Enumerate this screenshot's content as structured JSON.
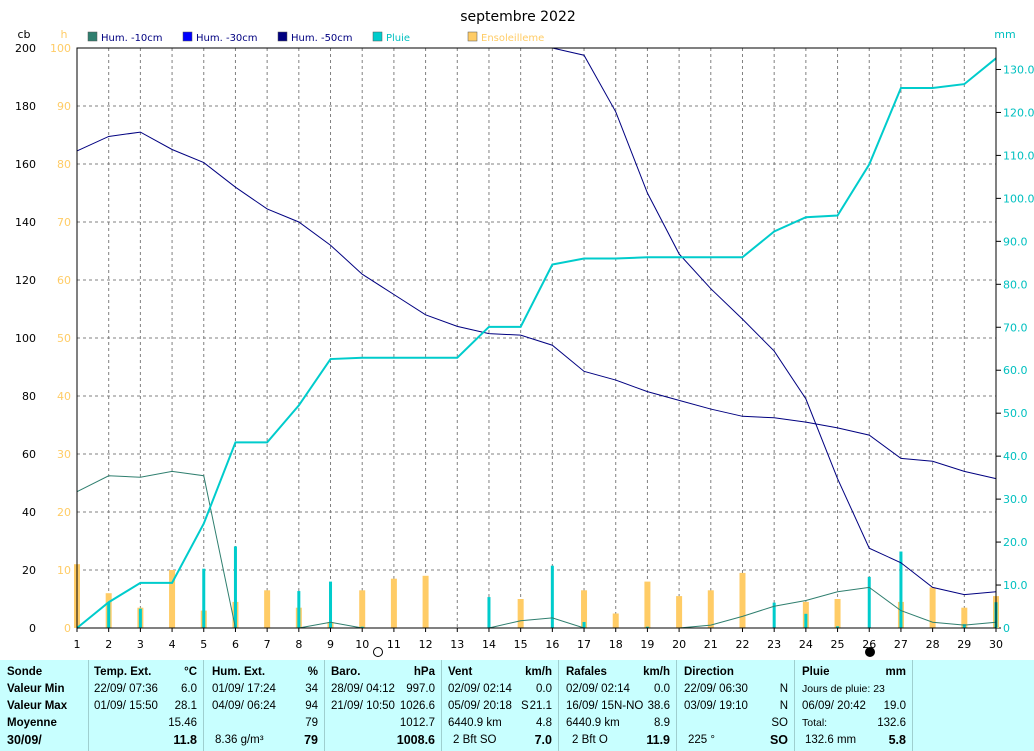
{
  "chart_data": {
    "type": "line",
    "title": "septembre 2022",
    "x": [
      1,
      2,
      3,
      4,
      5,
      6,
      7,
      8,
      9,
      10,
      11,
      12,
      13,
      14,
      15,
      16,
      17,
      18,
      19,
      20,
      21,
      22,
      23,
      24,
      25,
      26,
      27,
      28,
      29,
      30
    ],
    "x_ticks": [
      "1",
      "2",
      "3",
      "4",
      "5",
      "6",
      "7",
      "8",
      "9",
      "10",
      "11",
      "12",
      "13",
      "14",
      "15",
      "16",
      "17",
      "18",
      "19",
      "20",
      "21",
      "22",
      "23",
      "24",
      "25",
      "26",
      "27",
      "28",
      "29",
      "30"
    ],
    "axes": {
      "cb": {
        "unit": "cb",
        "range": [
          0,
          200
        ],
        "ticks": [
          "0",
          "20",
          "40",
          "60",
          "80",
          "100",
          "120",
          "140",
          "160",
          "180",
          "200"
        ],
        "color": "#000000"
      },
      "h": {
        "unit": "h",
        "range": [
          0,
          100
        ],
        "ticks": [
          "0",
          "10",
          "20",
          "30",
          "40",
          "50",
          "60",
          "70",
          "80",
          "90",
          "100"
        ],
        "color": "#ffcc66"
      },
      "mm": {
        "unit": "mm",
        "range": [
          0,
          135
        ],
        "ticks": [
          "0",
          "10.0",
          "20.0",
          "30.0",
          "40.0",
          "50.0",
          "60.0",
          "70.0",
          "80.0",
          "90.0",
          "100.0",
          "110.0",
          "120.0",
          "130.0"
        ],
        "color": "#00c0c0"
      }
    },
    "grid": true,
    "legend_position": "top",
    "legend": [
      {
        "name": "Hum. -10cm",
        "color": "#2f7f6f"
      },
      {
        "name": "Hum. -30cm",
        "color": "#0000ff"
      },
      {
        "name": "Hum. -50cm",
        "color": "#000080"
      },
      {
        "name": "Pluie",
        "color": "#00cccc"
      },
      {
        "name": "Ensoleilleme",
        "color": "#ffcc66"
      }
    ],
    "series": [
      {
        "name": "Hum. -10cm",
        "axis": "cb",
        "color": "#2f7f6f",
        "kind": "line",
        "values": [
          47,
          52.5,
          52,
          54,
          52.5,
          0,
          0,
          0,
          2,
          0,
          0,
          0,
          0,
          0,
          2.5,
          3.5,
          0,
          0,
          0,
          0,
          1,
          4,
          7.5,
          9.5,
          12.5,
          14,
          6,
          2,
          1,
          2
        ]
      },
      {
        "name": "Hum. -30cm",
        "axis": "cb",
        "color": "#0000ff",
        "kind": "line",
        "values": [
          200,
          200,
          200,
          200,
          200,
          200,
          200,
          200,
          200,
          200,
          200,
          200,
          200,
          200,
          200,
          200,
          200,
          200,
          200,
          200,
          200,
          200,
          200,
          200,
          200,
          200,
          200,
          200,
          200,
          200
        ]
      },
      {
        "name": "Hum. -50cm",
        "axis": "cb",
        "color": "#000080",
        "kind": "line",
        "values": [
          164.5,
          169.5,
          171,
          165,
          160.5,
          152,
          144.5,
          140,
          132,
          122,
          115,
          108,
          104,
          101.5,
          101,
          97.5,
          88.5,
          85.5,
          81.5,
          78.5,
          75.5,
          73,
          72.5,
          71,
          69,
          66.5,
          58.5,
          57.5,
          54,
          51.5
        ],
        "extra_start": 200,
        "extra_path": [
          [
            16,
            200
          ],
          [
            17,
            197.5
          ],
          [
            18,
            178
          ],
          [
            19,
            150
          ],
          [
            20,
            129
          ],
          [
            21,
            117
          ],
          [
            22,
            106.5
          ],
          [
            23,
            95.5
          ],
          [
            24,
            79
          ],
          [
            25,
            51.5
          ],
          [
            26,
            27.5
          ],
          [
            27,
            22.5
          ],
          [
            28,
            14
          ],
          [
            29,
            11.5
          ],
          [
            30,
            12.5
          ]
        ]
      },
      {
        "name": "Pluie",
        "axis": "mm",
        "color": "#00cccc",
        "kind": "line",
        "values": [
          0,
          6,
          10.5,
          10.5,
          24.3,
          43.2,
          43.2,
          51.8,
          62.6,
          62.9,
          62.9,
          62.9,
          62.9,
          70.1,
          70.1,
          84.6,
          86,
          86,
          86.3,
          86.3,
          86.3,
          86.3,
          92.3,
          95.6,
          96,
          107.9,
          125.7,
          125.7,
          126.6,
          132.6
        ]
      },
      {
        "name": "Pluie",
        "axis": "mm",
        "color": "#00cccc",
        "kind": "bar",
        "values": [
          0,
          6,
          4.5,
          0,
          13.8,
          19,
          0,
          8.6,
          10.8,
          0.3,
          0,
          0,
          0,
          7.2,
          0,
          14.5,
          1.4,
          0,
          0.3,
          0,
          0,
          0,
          5.9,
          3.3,
          0.4,
          11.9,
          17.8,
          0,
          0.9,
          6
        ]
      },
      {
        "name": "Ensoleilleme",
        "axis": "h",
        "color": "#ffcc66",
        "kind": "bar",
        "values": [
          11,
          6,
          3.5,
          10,
          3,
          4.5,
          6.5,
          3.5,
          1,
          6.5,
          8.5,
          9,
          0,
          0,
          5,
          0,
          6.5,
          2.5,
          8,
          5.5,
          6.5,
          9.5,
          0,
          4.5,
          5,
          0,
          4.5,
          7,
          3.5,
          5.5
        ]
      }
    ]
  },
  "summary": {
    "col1": {
      "header": "Sonde",
      "rows": [
        "Valeur Min",
        "Valeur Max",
        "Moyenne",
        "30/09/"
      ]
    },
    "temp": {
      "header": "Temp. Ext.",
      "unit": "°C",
      "min": {
        "ts": "22/09/  07:36",
        "val": "6.0"
      },
      "max": {
        "ts": "01/09/  15:50",
        "val": "28.1"
      },
      "avg": "15.46",
      "cur": "11.8"
    },
    "hum": {
      "header": "Hum. Ext.",
      "unit": "%",
      "min": {
        "ts": "01/09/  17:24",
        "val": "34"
      },
      "max": {
        "ts": "04/09/  06:24",
        "val": "94"
      },
      "avg": "79",
      "cur_note": "8.36 g/m³",
      "cur": "79"
    },
    "baro": {
      "header": "Baro.",
      "unit": "hPa",
      "min": {
        "ts": "28/09/  04:12",
        "val": "997.0"
      },
      "max": {
        "ts": "21/09/  10:50",
        "val": "1026.6"
      },
      "avg": "1012.7",
      "cur": "1008.6"
    },
    "vent": {
      "header": "Vent",
      "unit": "km/h",
      "min": {
        "ts": "02/09/  02:14",
        "mid": "",
        "val": "0.0"
      },
      "max": {
        "ts": "05/09/  20:18",
        "mid": "S",
        "val": "21.1"
      },
      "avg_note": "6440.9 km",
      "avg": "4.8",
      "cur_note": "2 Bft SO",
      "cur": "7.0"
    },
    "rafales": {
      "header": "Rafales",
      "unit": "km/h",
      "min": {
        "ts": "02/09/  02:14",
        "val": "0.0"
      },
      "max": {
        "ts": "16/09/  15N-NO",
        "val": "38.6"
      },
      "avg_note": "6440.9 km",
      "avg": "8.9",
      "cur_note": "2 Bft O",
      "cur": "11.9"
    },
    "direction": {
      "header": "Direction",
      "min": {
        "ts": "22/09/  06:30",
        "val": "N"
      },
      "max": {
        "ts": "03/09/  19:10",
        "val": "N"
      },
      "avg": "SO",
      "cur_note": "225 °",
      "cur": "SO"
    },
    "pluie": {
      "header": "Pluie",
      "unit": "mm",
      "r1": "Jours de pluie: 23",
      "r2": {
        "ts": "06/09/  20:42",
        "val": "19.0"
      },
      "r3": {
        "label": "Total:",
        "val": "132.6"
      },
      "r4": {
        "label": "132.6 mm",
        "val": "5.8"
      }
    }
  }
}
